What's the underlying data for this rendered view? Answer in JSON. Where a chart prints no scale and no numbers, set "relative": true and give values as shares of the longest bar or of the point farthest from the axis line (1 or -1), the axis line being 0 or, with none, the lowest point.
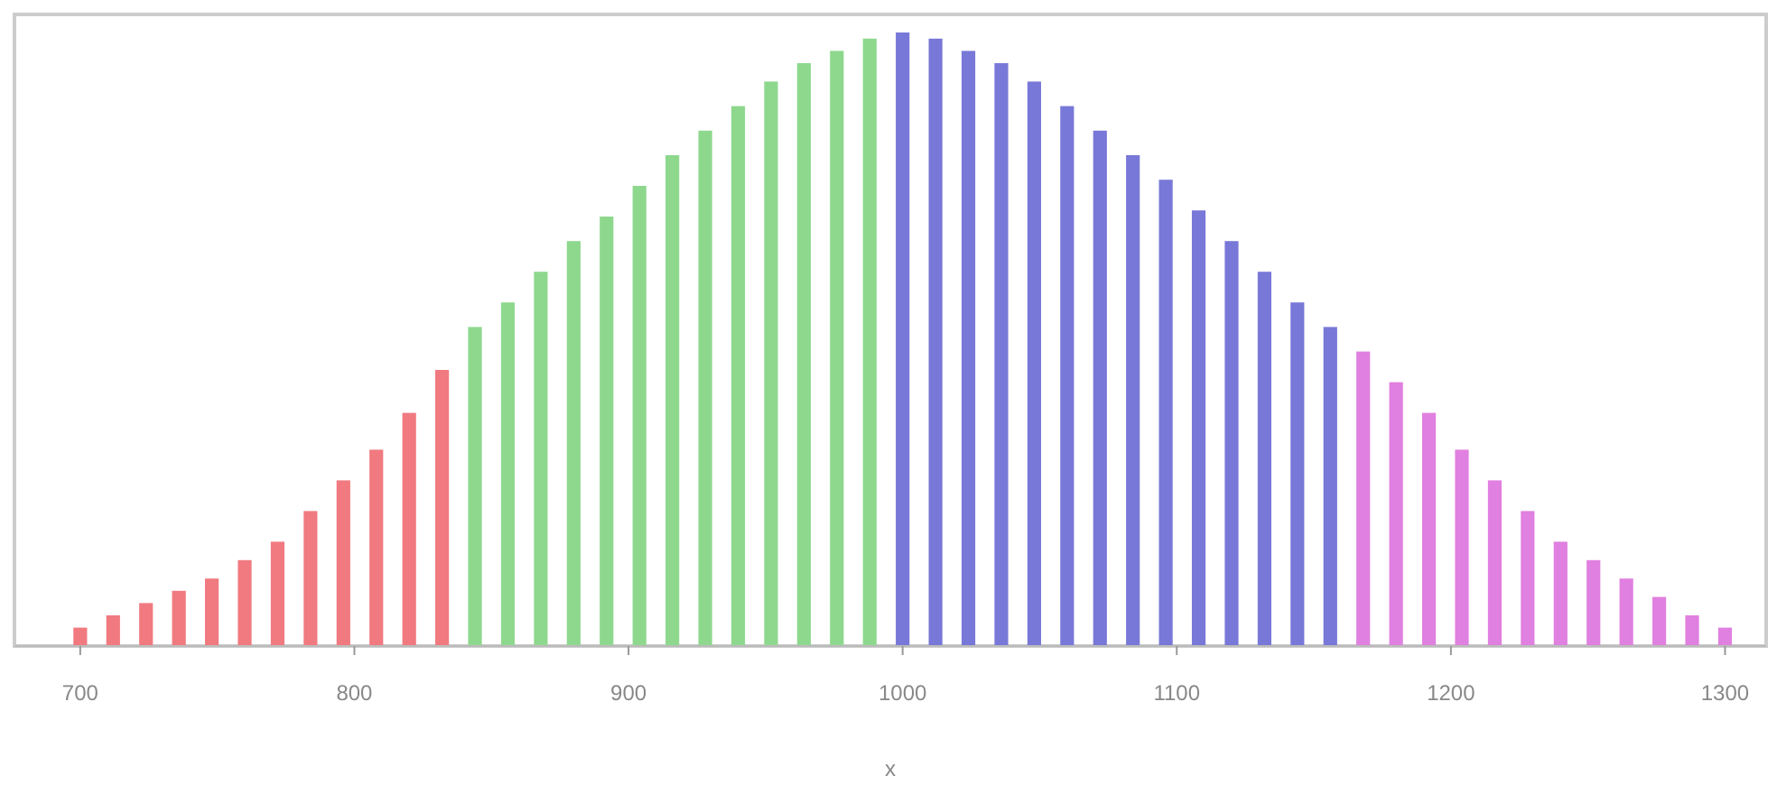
{
  "chart_data": {
    "type": "bar",
    "relative": true,
    "xlabel": "x",
    "xlim": [
      676,
      1315
    ],
    "xticks": [
      700,
      800,
      900,
      1000,
      1100,
      1200,
      1300
    ],
    "series": [
      {
        "color": "#f07a80",
        "x": [
          700,
          712,
          724,
          736,
          748,
          760,
          772,
          784,
          796,
          808,
          820,
          832
        ],
        "values": [
          0.03,
          0.05,
          0.07,
          0.09,
          0.11,
          0.14,
          0.17,
          0.22,
          0.27,
          0.32,
          0.38,
          0.45
        ]
      },
      {
        "color": "#8ed88e",
        "x": [
          844,
          856,
          868,
          880,
          892,
          904,
          916,
          928,
          940,
          952,
          964,
          976,
          988
        ],
        "values": [
          0.52,
          0.56,
          0.61,
          0.66,
          0.7,
          0.75,
          0.8,
          0.84,
          0.88,
          0.92,
          0.95,
          0.97,
          0.99
        ]
      },
      {
        "color": "#7878d8",
        "x": [
          1000,
          1012,
          1024,
          1036,
          1048,
          1060,
          1072,
          1084,
          1096,
          1108,
          1120,
          1132,
          1144,
          1156
        ],
        "values": [
          1,
          0.99,
          0.97,
          0.95,
          0.92,
          0.88,
          0.84,
          0.8,
          0.76,
          0.71,
          0.66,
          0.61,
          0.56,
          0.52
        ]
      },
      {
        "color": "#e080e0",
        "x": [
          1168,
          1180,
          1192,
          1204,
          1216,
          1228,
          1240,
          1252,
          1264,
          1276,
          1288,
          1300
        ],
        "values": [
          0.48,
          0.43,
          0.38,
          0.32,
          0.27,
          0.22,
          0.17,
          0.14,
          0.11,
          0.08,
          0.05,
          0.03
        ]
      }
    ]
  }
}
